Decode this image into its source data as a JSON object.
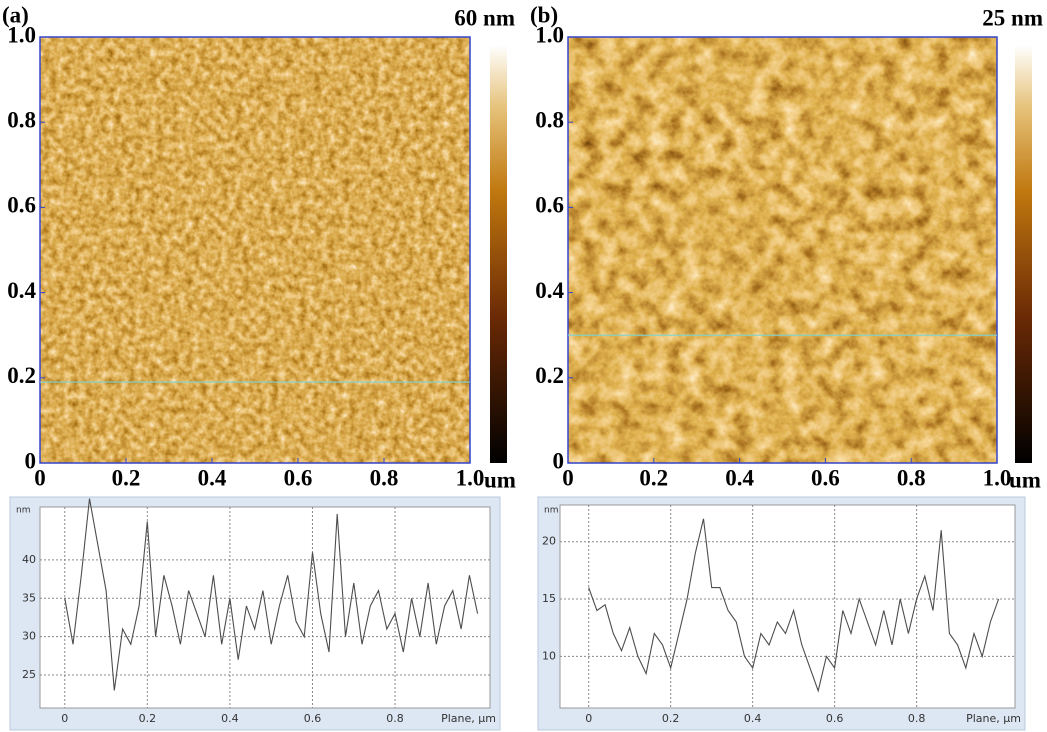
{
  "chart_data": [
    {
      "type": "image",
      "label": "(a)",
      "colorbar_label": "60 nm",
      "x_unit": "um",
      "xlim": [
        0,
        1
      ],
      "ylim": [
        0,
        1
      ],
      "xticks": [
        0,
        0.2,
        0.4,
        0.6,
        0.8,
        {
          "value": 1,
          "label": "1.0"
        }
      ],
      "yticks": [
        0,
        0.2,
        0.4,
        0.6,
        0.8,
        {
          "value": 1,
          "label": "1.0"
        }
      ],
      "profile_y": 0.19
    },
    {
      "type": "image",
      "label": "(b)",
      "colorbar_label": "25 nm",
      "x_unit": "um",
      "xlim": [
        0,
        1
      ],
      "ylim": [
        0,
        1
      ],
      "xticks": [
        0,
        0.2,
        0.4,
        0.6,
        0.8,
        {
          "value": 1,
          "label": "1.0"
        }
      ],
      "yticks": [
        0,
        0.2,
        0.4,
        0.6,
        0.8,
        {
          "value": 1,
          "label": "1.0"
        }
      ],
      "profile_y": 0.3
    },
    {
      "type": "line",
      "y_label": "nm",
      "x_label": "Plane, µm",
      "color": "#4d4d4d",
      "grid": true,
      "xlim": [
        -0.06,
        1.03
      ],
      "ylim": [
        20.7,
        46.9
      ],
      "xticks": [
        0,
        0.2,
        0.4,
        0.6,
        0.8
      ],
      "yticks": [
        25,
        30,
        35,
        40
      ],
      "x": [
        0,
        0.02,
        0.04,
        0.06,
        0.08,
        0.1,
        0.12,
        0.14,
        0.16,
        0.18,
        0.2,
        0.22,
        0.24,
        0.26,
        0.28,
        0.3,
        0.32,
        0.34,
        0.36,
        0.38,
        0.4,
        0.42,
        0.44,
        0.46,
        0.48,
        0.5,
        0.52,
        0.54,
        0.56,
        0.58,
        0.6,
        0.62,
        0.64,
        0.66,
        0.68,
        0.7,
        0.72,
        0.74,
        0.76,
        0.78,
        0.8,
        0.82,
        0.84,
        0.86,
        0.88,
        0.9,
        0.92,
        0.94,
        0.96,
        0.98,
        1.0
      ],
      "values": [
        35,
        29,
        38,
        48,
        42,
        36,
        23,
        31,
        29,
        34,
        45,
        30,
        38,
        34,
        29,
        36,
        33,
        30,
        38,
        29,
        35,
        27,
        34,
        31,
        36,
        29,
        34,
        38,
        32,
        30,
        41,
        33,
        28,
        46,
        30,
        37,
        29,
        34,
        36,
        31,
        33,
        28,
        35,
        30,
        37,
        29,
        34,
        36,
        31,
        38,
        33
      ]
    },
    {
      "type": "line",
      "y_label": "nm",
      "x_label": "Plane, µm",
      "color": "#4d4d4d",
      "grid": true,
      "xlim": [
        -0.07,
        1.04
      ],
      "ylim": [
        5.5,
        23.2
      ],
      "xticks": [
        0,
        0.2,
        0.4,
        0.6,
        0.8
      ],
      "yticks": [
        10,
        15,
        20
      ],
      "x": [
        0,
        0.02,
        0.04,
        0.06,
        0.08,
        0.1,
        0.12,
        0.14,
        0.16,
        0.18,
        0.2,
        0.22,
        0.24,
        0.26,
        0.28,
        0.3,
        0.32,
        0.34,
        0.36,
        0.38,
        0.4,
        0.42,
        0.44,
        0.46,
        0.48,
        0.5,
        0.52,
        0.54,
        0.56,
        0.58,
        0.6,
        0.62,
        0.64,
        0.66,
        0.68,
        0.7,
        0.72,
        0.74,
        0.76,
        0.78,
        0.8,
        0.82,
        0.84,
        0.86,
        0.88,
        0.9,
        0.92,
        0.94,
        0.96,
        0.98,
        1.0
      ],
      "values": [
        16,
        14,
        14.5,
        12,
        10.5,
        12.5,
        10,
        8.5,
        12,
        11,
        9,
        12,
        15,
        19,
        22,
        16,
        16,
        14,
        13,
        10,
        9,
        12,
        11,
        13,
        12,
        14,
        11,
        9,
        7,
        10,
        9,
        14,
        12,
        15,
        13,
        11,
        14,
        11,
        15,
        12,
        15,
        17,
        14,
        21,
        12,
        11,
        9,
        12,
        10,
        13,
        15
      ]
    }
  ]
}
